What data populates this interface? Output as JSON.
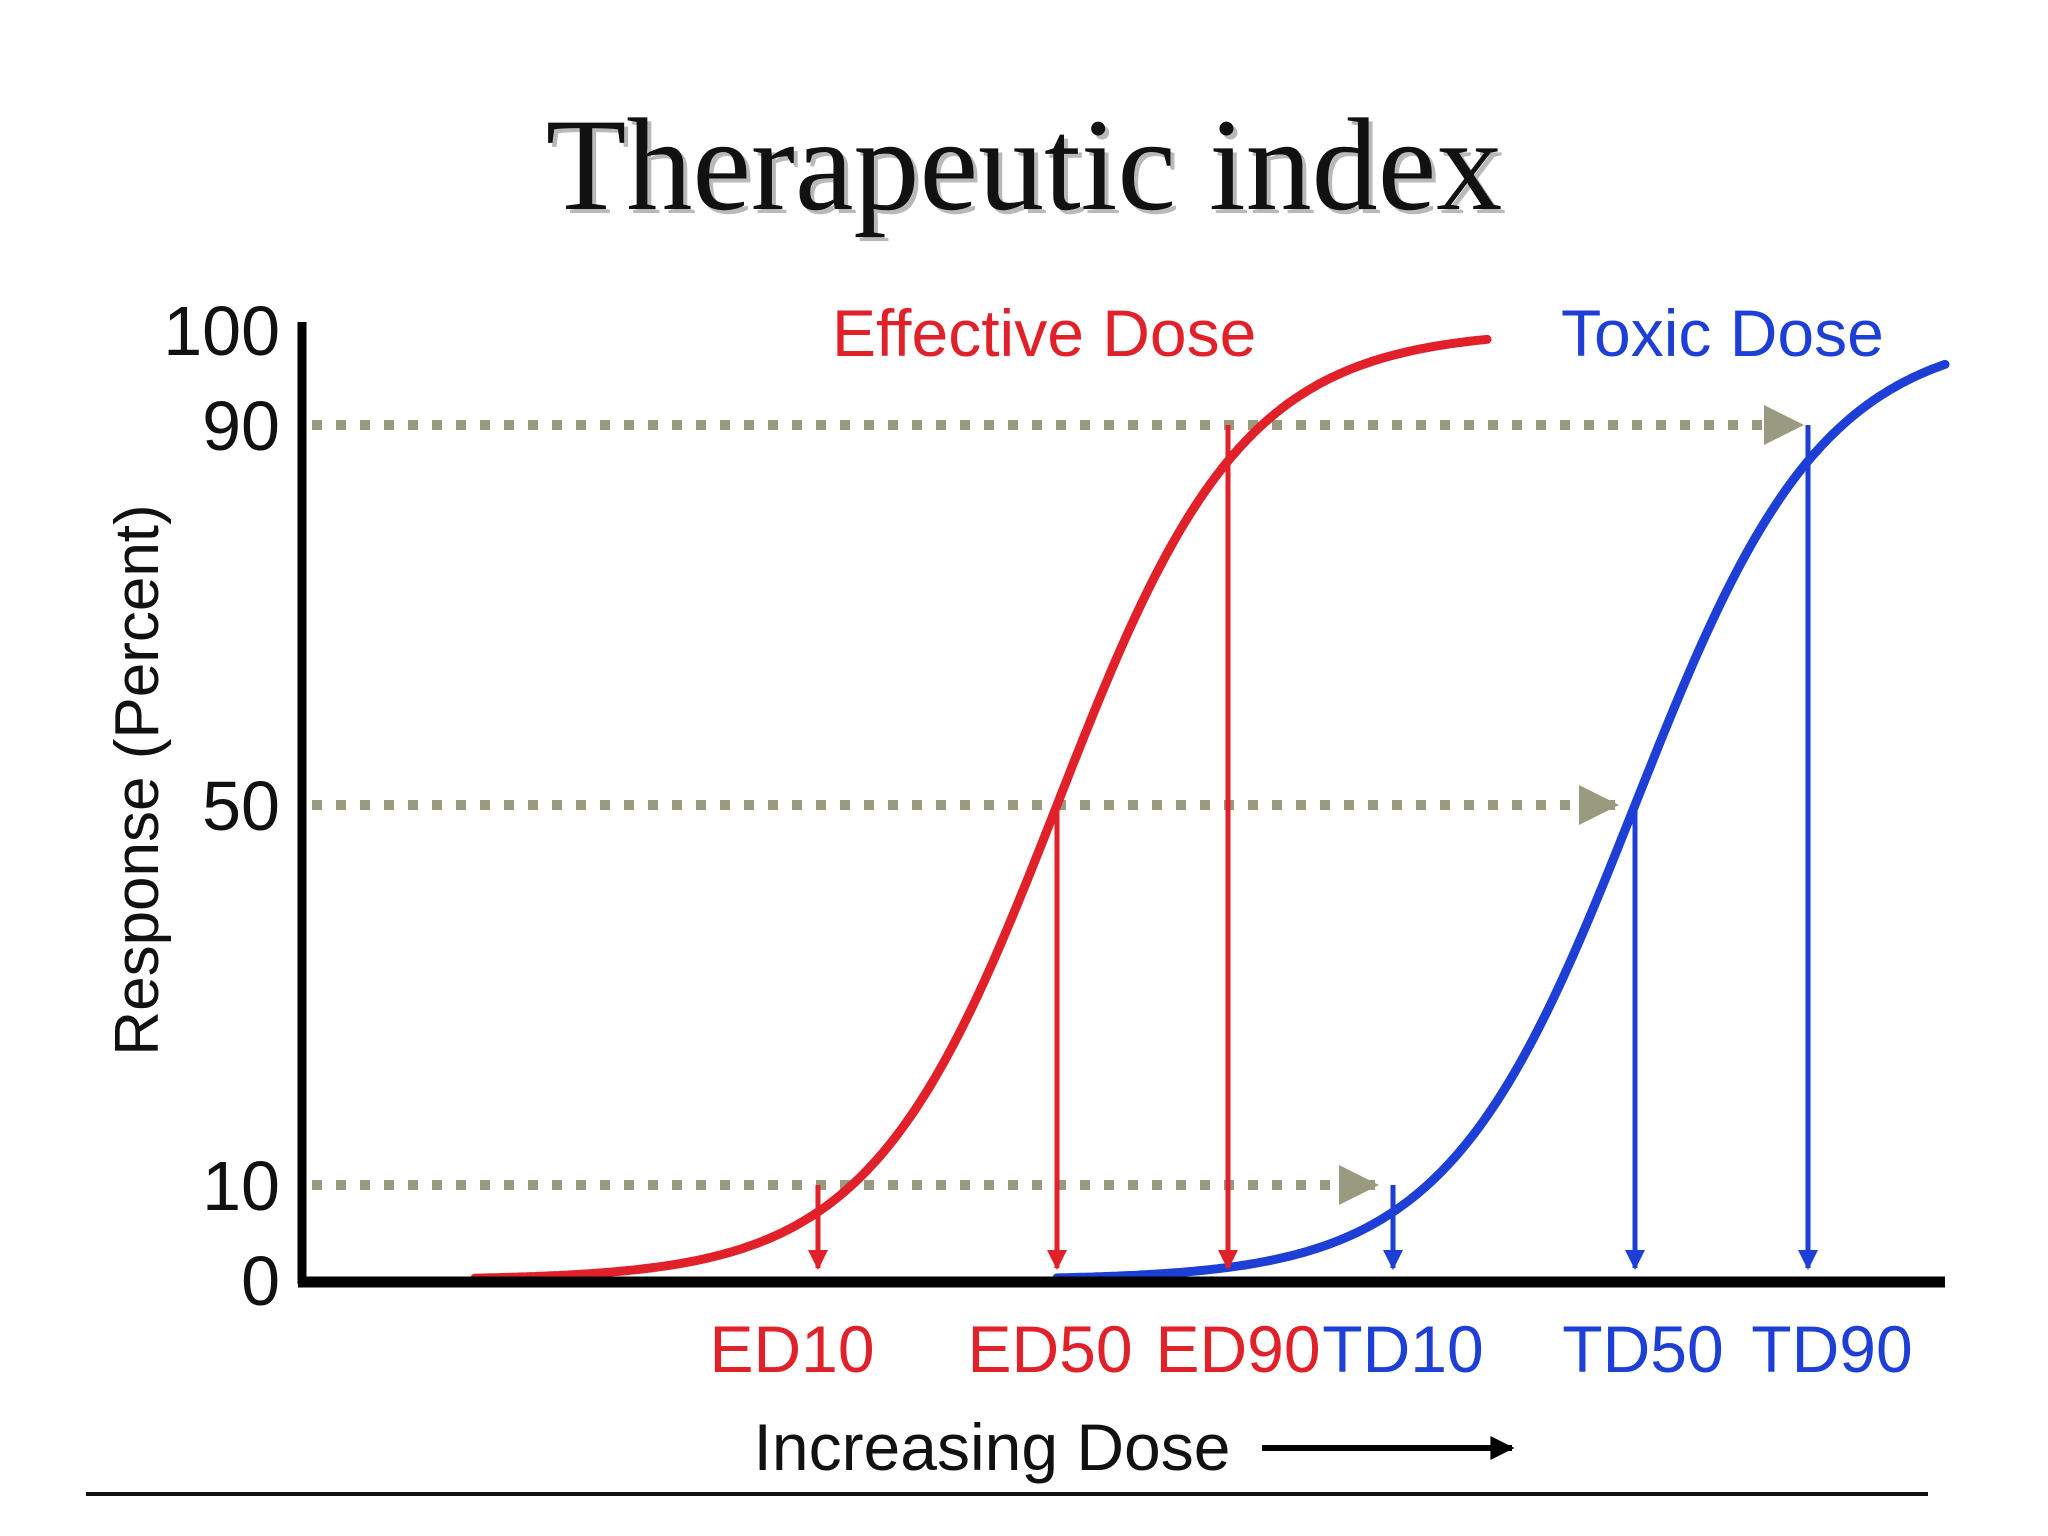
{
  "slide": {
    "title": "Therapeutic index"
  },
  "colors": {
    "effective": "#e0212a",
    "toxic": "#1e3fd6",
    "guide": "#9a9a80",
    "axis": "#000000"
  },
  "chart_data": {
    "type": "line",
    "title": "",
    "ylabel": "Response (Percent)",
    "xlabel": "Increasing Dose",
    "ylim": [
      0,
      100
    ],
    "y_ticks": [
      "0",
      "10",
      "50",
      "90",
      "100"
    ],
    "x_ticks": [
      "ED10",
      "ED50",
      "ED90",
      "TD10",
      "TD50",
      "TD90"
    ],
    "x_tick_colors": [
      "effective",
      "effective",
      "effective",
      "toxic",
      "toxic",
      "toxic"
    ],
    "series": [
      {
        "name": "Effective Dose",
        "color_key": "effective",
        "markers": [
          "ED10",
          "ED50",
          "ED90"
        ]
      },
      {
        "name": "Toxic Dose",
        "color_key": "toxic",
        "markers": [
          "TD10",
          "TD50",
          "TD90"
        ]
      }
    ],
    "guide_levels": [
      10,
      50,
      90
    ],
    "grid": false,
    "legend": "curve labels at top"
  }
}
